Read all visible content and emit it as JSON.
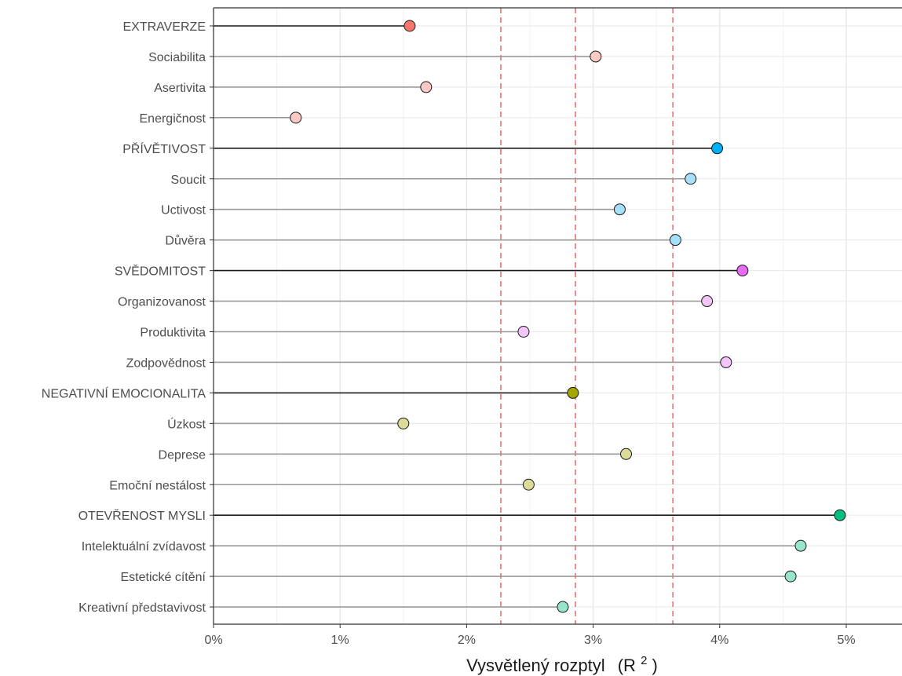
{
  "chart_data": {
    "type": "lollipop",
    "xlabel": "Vysvětlený rozptyl",
    "xlabel_symbol": "(R",
    "xlabel_sup": "2",
    "xlabel_close": ")",
    "xlim": [
      0,
      5.45
    ],
    "x_ticks": [
      0,
      1,
      2,
      3,
      4,
      5
    ],
    "x_tick_labels": [
      "0%",
      "1%",
      "2%",
      "3%",
      "4%",
      "5%"
    ],
    "grid": true,
    "reference_lines": [
      2.27,
      2.86,
      3.63
    ],
    "reference_line_color": "#f08080",
    "categories": [
      {
        "label": "EXTRAVERZE",
        "value": 1.55,
        "color": "#f8766d",
        "type": "domain"
      },
      {
        "label": "Sociabilita",
        "value": 3.02,
        "color": "#fcc9c5",
        "type": "facet"
      },
      {
        "label": "Asertivita",
        "value": 1.68,
        "color": "#fcc9c5",
        "type": "facet"
      },
      {
        "label": "Energičnost",
        "value": 0.65,
        "color": "#fcc9c5",
        "type": "facet"
      },
      {
        "label": "PŘÍVĚTIVOST",
        "value": 3.98,
        "color": "#00b0f6",
        "type": "domain"
      },
      {
        "label": "Soucit",
        "value": 3.77,
        "color": "#a6dffa",
        "type": "facet"
      },
      {
        "label": "Uctivost",
        "value": 3.21,
        "color": "#a6dffa",
        "type": "facet"
      },
      {
        "label": "Důvěra",
        "value": 3.65,
        "color": "#a6dffa",
        "type": "facet"
      },
      {
        "label": "SVĚDOMITOST",
        "value": 4.18,
        "color": "#e76bf3",
        "type": "domain"
      },
      {
        "label": "Organizovanost",
        "value": 3.9,
        "color": "#f4c5f8",
        "type": "facet"
      },
      {
        "label": "Produktivita",
        "value": 2.45,
        "color": "#f4c5f8",
        "type": "facet"
      },
      {
        "label": "Zodpovědnost",
        "value": 4.05,
        "color": "#f4c5f8",
        "type": "facet"
      },
      {
        "label": "NEGATIVNÍ EMOCIONALITA",
        "value": 2.84,
        "color": "#a3a500",
        "type": "domain"
      },
      {
        "label": "Úzkost",
        "value": 1.5,
        "color": "#dcdc99",
        "type": "facet"
      },
      {
        "label": "Deprese",
        "value": 3.26,
        "color": "#dcdc99",
        "type": "facet"
      },
      {
        "label": "Emoční nestálost",
        "value": 2.49,
        "color": "#dcdc99",
        "type": "facet"
      },
      {
        "label": "OTEVŘENOST MYSLI",
        "value": 4.95,
        "color": "#00bf7d",
        "type": "domain"
      },
      {
        "label": "Intelektuální zvídavost",
        "value": 4.64,
        "color": "#99e5cb",
        "type": "facet"
      },
      {
        "label": "Estetické cítění",
        "value": 4.56,
        "color": "#99e5cb",
        "type": "facet"
      },
      {
        "label": "Kreativní představivost",
        "value": 2.76,
        "color": "#99e5cb",
        "type": "facet"
      }
    ]
  }
}
